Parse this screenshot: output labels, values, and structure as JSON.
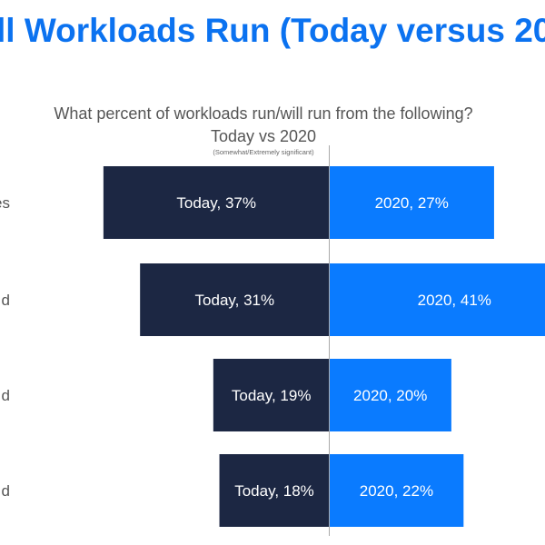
{
  "page_title": "ll Workloads Run (Today versus 20",
  "colors": {
    "title": "#0b72f0",
    "today": "#1c2743",
    "y2020": "#0a7bff",
    "axis": "#aaaaaa",
    "text": "#555555"
  },
  "chart_data": {
    "type": "bar",
    "orientation": "horizontal-diverging",
    "title": "What percent of workloads run/will run from the following?",
    "subtitle": "Today vs 2020",
    "note": "(Somewhat/Extremely significant)",
    "categories": [
      "es",
      "d",
      "d",
      "d"
    ],
    "series": [
      {
        "name": "Today",
        "values": [
          37,
          31,
          19,
          18
        ],
        "labels": [
          "Today, 37%",
          "Today,  31%",
          "Today, 19%",
          "Today, 18%"
        ]
      },
      {
        "name": "2020",
        "values": [
          27,
          41,
          20,
          22
        ],
        "labels": [
          "2020, 27%",
          "2020, 41%",
          "2020, 20%",
          "2020, 22%"
        ]
      }
    ],
    "unit": "%"
  }
}
